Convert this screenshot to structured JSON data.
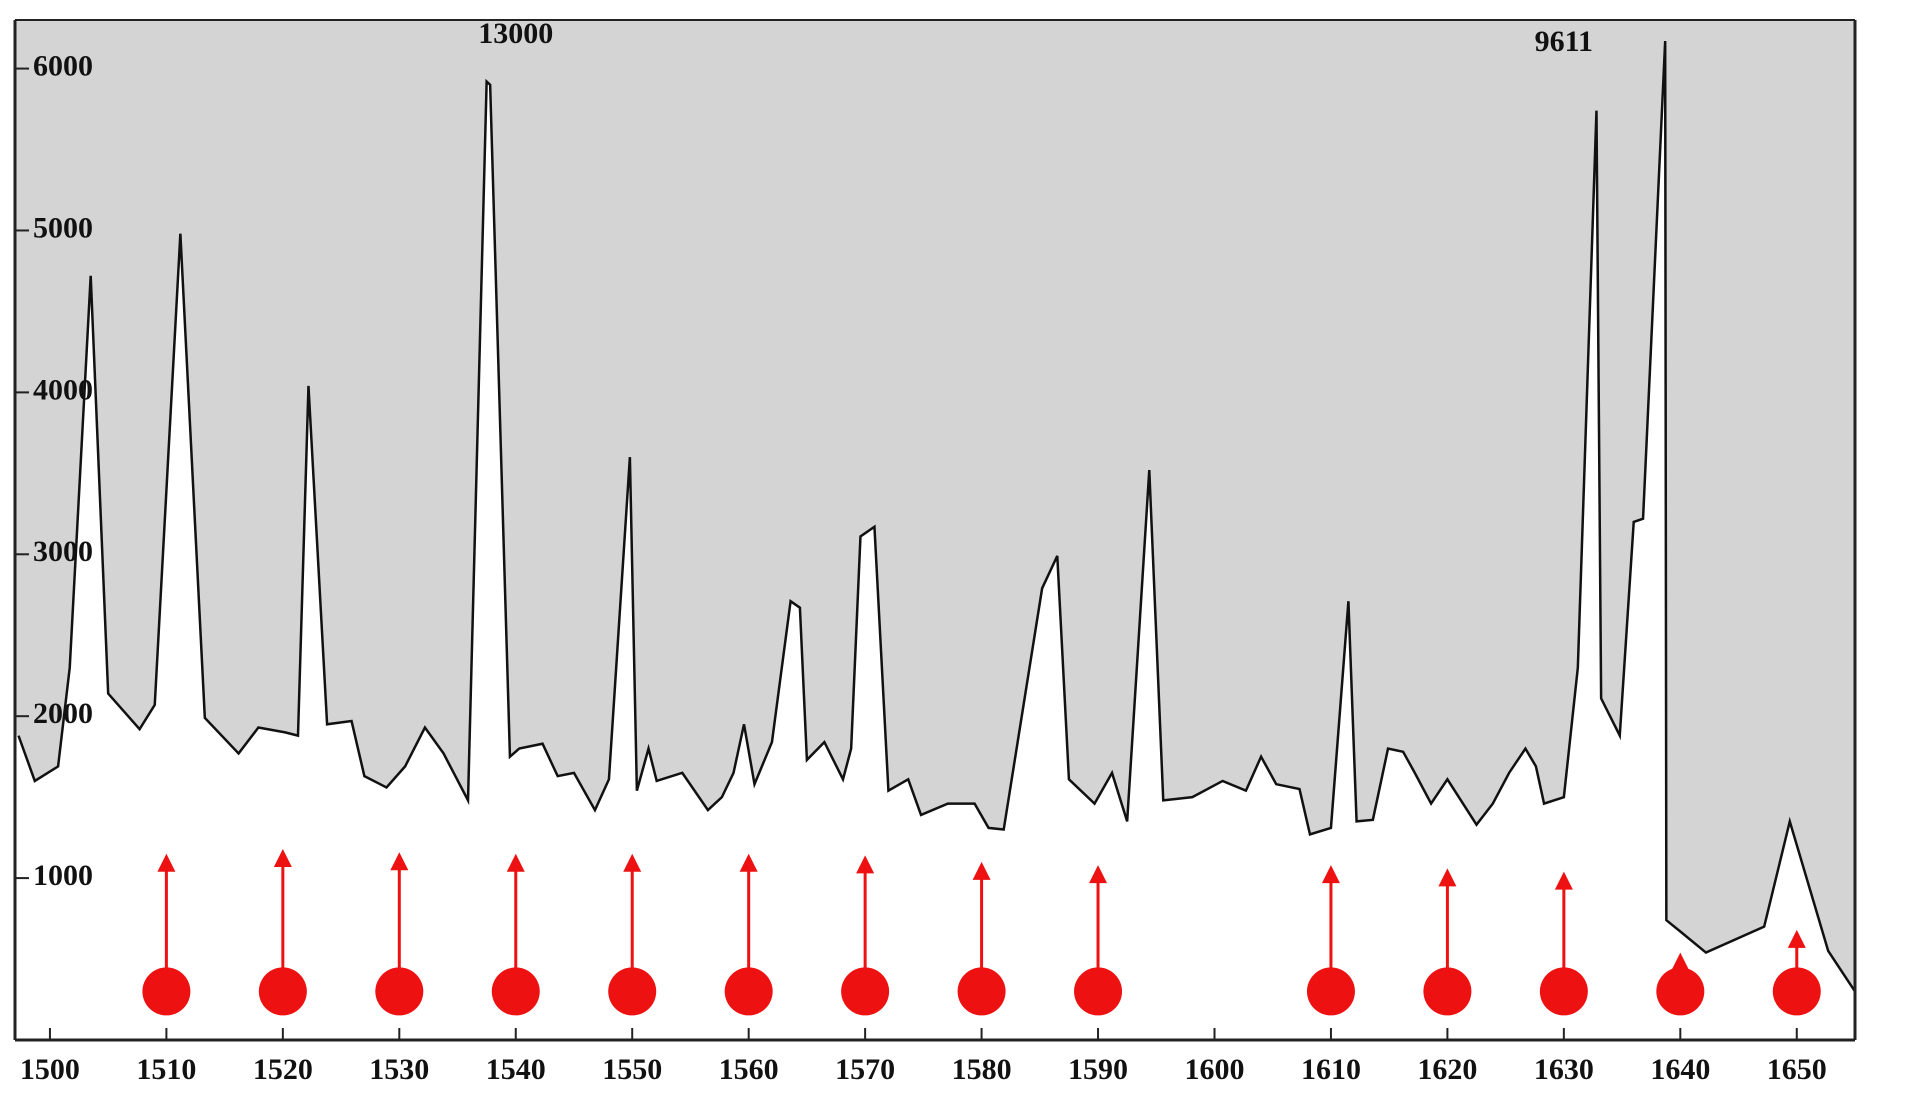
{
  "chart_data": {
    "type": "line",
    "color": "#111111",
    "area_color": "#d4d4d4",
    "marker_color": "#ee1111",
    "xlim": [
      1497,
      1655
    ],
    "ylim": [
      0,
      6300
    ],
    "xticks": [
      1500,
      1510,
      1520,
      1530,
      1540,
      1550,
      1560,
      1570,
      1580,
      1590,
      1600,
      1610,
      1620,
      1630,
      1640,
      1650
    ],
    "yticks": [
      1000,
      2000,
      3000,
      4000,
      5000,
      6000
    ],
    "x": [
      1497.3,
      1498.7,
      1500.7,
      1501.7,
      1503.5,
      1505,
      1507.7,
      1509,
      1511.2,
      1513.3,
      1516.2,
      1517.9,
      1520.2,
      1521.3,
      1522.2,
      1523.8,
      1525.9,
      1527,
      1528.9,
      1530.5,
      1532.2,
      1533.8,
      1535.9,
      1537.5,
      1537.8,
      1539.5,
      1540.3,
      1542.3,
      1543.6,
      1545,
      1546.8,
      1548,
      1549.8,
      1550.4,
      1551.4,
      1552.1,
      1554.3,
      1556.5,
      1557.7,
      1558.7,
      1559.6,
      1560.5,
      1562,
      1563.6,
      1564.4,
      1565,
      1566.5,
      1568.1,
      1568.8,
      1569.6,
      1570.8,
      1572,
      1573.7,
      1574.8,
      1577.1,
      1579.4,
      1580.6,
      1581.9,
      1585.2,
      1586.5,
      1587.5,
      1589.7,
      1591.2,
      1592.5,
      1594.4,
      1595.6,
      1598.1,
      1600.7,
      1602.7,
      1604,
      1605.3,
      1607.3,
      1608.2,
      1610,
      1611.5,
      1612.2,
      1613.6,
      1614.9,
      1616.2,
      1617.2,
      1618.6,
      1620,
      1622.5,
      1623.9,
      1625.3,
      1626.7,
      1627.6,
      1628.3,
      1630,
      1631.2,
      1632.8,
      1633.2,
      1634.8,
      1636,
      1636.8,
      1638.7,
      1638.8,
      1640,
      1642.2,
      1647.2,
      1649.4,
      1652.7,
      1655
    ],
    "values": [
      1880,
      1600,
      1690,
      2300,
      4720,
      2140,
      1920,
      2070,
      4980,
      1990,
      1770,
      1930,
      1900,
      1880,
      4040,
      1950,
      1970,
      1630,
      1560,
      1690,
      1930,
      1770,
      1480,
      5920,
      5900,
      1750,
      1800,
      1830,
      1630,
      1650,
      1420,
      1610,
      3600,
      1540,
      1800,
      1600,
      1650,
      1420,
      1500,
      1650,
      1950,
      1580,
      1840,
      2710,
      2670,
      1730,
      1840,
      1610,
      1800,
      3110,
      3170,
      1540,
      1610,
      1390,
      1460,
      1460,
      1310,
      1300,
      2790,
      2990,
      1610,
      1460,
      1650,
      1350,
      3520,
      1480,
      1500,
      1600,
      1540,
      1750,
      1580,
      1550,
      1270,
      1310,
      2710,
      1350,
      1360,
      1800,
      1780,
      1650,
      1460,
      1610,
      1330,
      1460,
      1650,
      1800,
      1690,
      1460,
      1500,
      2300,
      5740,
      2110,
      1880,
      3200,
      3220,
      6170,
      740,
      670,
      540,
      700,
      1350,
      550,
      300
    ],
    "annotations": [
      {
        "text": "13000",
        "x": 1540,
        "y": 6200
      },
      {
        "text": "9611",
        "x": 1630,
        "y": 6150
      }
    ],
    "arrows": {
      "x": [
        1510,
        1520,
        1530,
        1540,
        1550,
        1560,
        1570,
        1580,
        1590,
        1610,
        1620,
        1630,
        1640,
        1650
      ],
      "values": [
        1150,
        1180,
        1160,
        1150,
        1150,
        1150,
        1140,
        1100,
        1080,
        1080,
        1060,
        1040,
        540,
        680
      ]
    }
  }
}
